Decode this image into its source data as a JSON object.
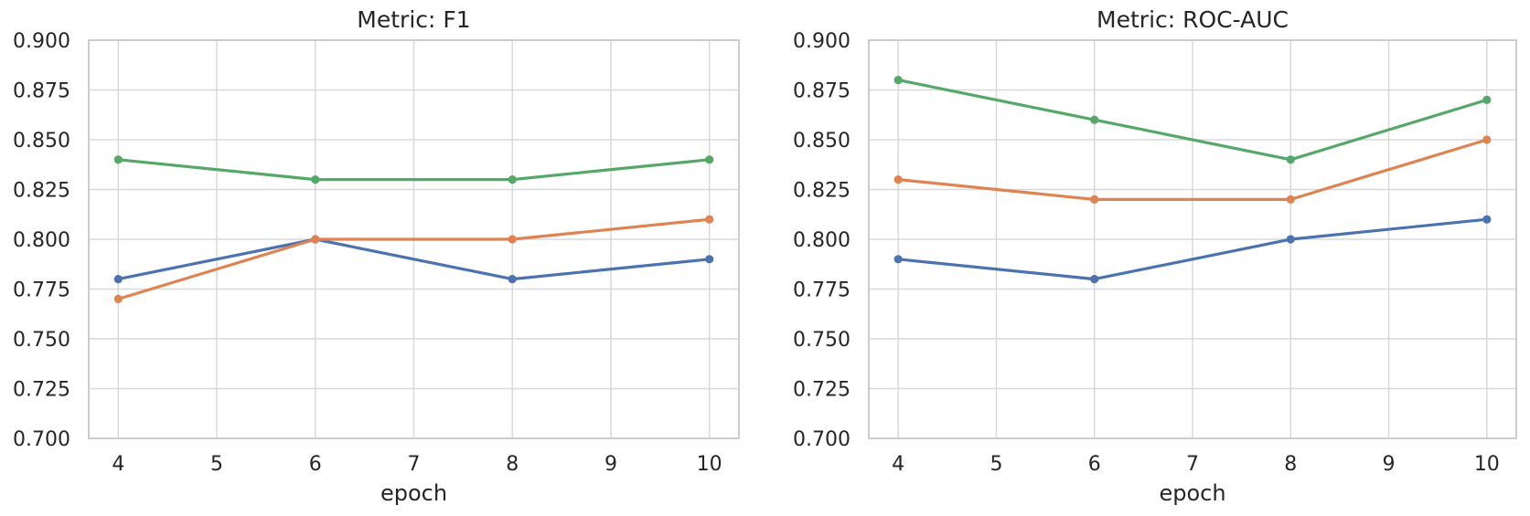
{
  "figure": {
    "background": "#ffffff",
    "text_color": "#262626",
    "grid_color": "#d9d9d9",
    "border_color": "#cccccc"
  },
  "chart_data": [
    {
      "type": "line",
      "title": "Metric: F1",
      "xlabel": "epoch",
      "ylabel": "",
      "grid": true,
      "legend": "none",
      "xlim": [
        3.7,
        10.3
      ],
      "ylim": [
        0.7,
        0.9
      ],
      "xticks": [
        4,
        5,
        6,
        7,
        8,
        9,
        10
      ],
      "yticks": [
        0.7,
        0.725,
        0.75,
        0.775,
        0.8,
        0.825,
        0.85,
        0.875,
        0.9
      ],
      "x": [
        4,
        6,
        8,
        10
      ],
      "series": [
        {
          "name": "blue",
          "color": "#4C72B0",
          "values": [
            0.78,
            0.8,
            0.78,
            0.79
          ]
        },
        {
          "name": "orange",
          "color": "#DD8452",
          "values": [
            0.77,
            0.8,
            0.8,
            0.81
          ]
        },
        {
          "name": "green",
          "color": "#55A868",
          "values": [
            0.84,
            0.83,
            0.83,
            0.84
          ]
        }
      ]
    },
    {
      "type": "line",
      "title": "Metric: ROC-AUC",
      "xlabel": "epoch",
      "ylabel": "",
      "grid": true,
      "legend": "none",
      "xlim": [
        3.7,
        10.3
      ],
      "ylim": [
        0.7,
        0.9
      ],
      "xticks": [
        4,
        5,
        6,
        7,
        8,
        9,
        10
      ],
      "yticks": [
        0.7,
        0.725,
        0.75,
        0.775,
        0.8,
        0.825,
        0.85,
        0.875,
        0.9
      ],
      "x": [
        4,
        6,
        8,
        10
      ],
      "series": [
        {
          "name": "blue",
          "color": "#4C72B0",
          "values": [
            0.79,
            0.78,
            0.8,
            0.81
          ]
        },
        {
          "name": "orange",
          "color": "#DD8452",
          "values": [
            0.83,
            0.82,
            0.82,
            0.85
          ]
        },
        {
          "name": "green",
          "color": "#55A868",
          "values": [
            0.88,
            0.86,
            0.84,
            0.87
          ]
        }
      ]
    }
  ]
}
